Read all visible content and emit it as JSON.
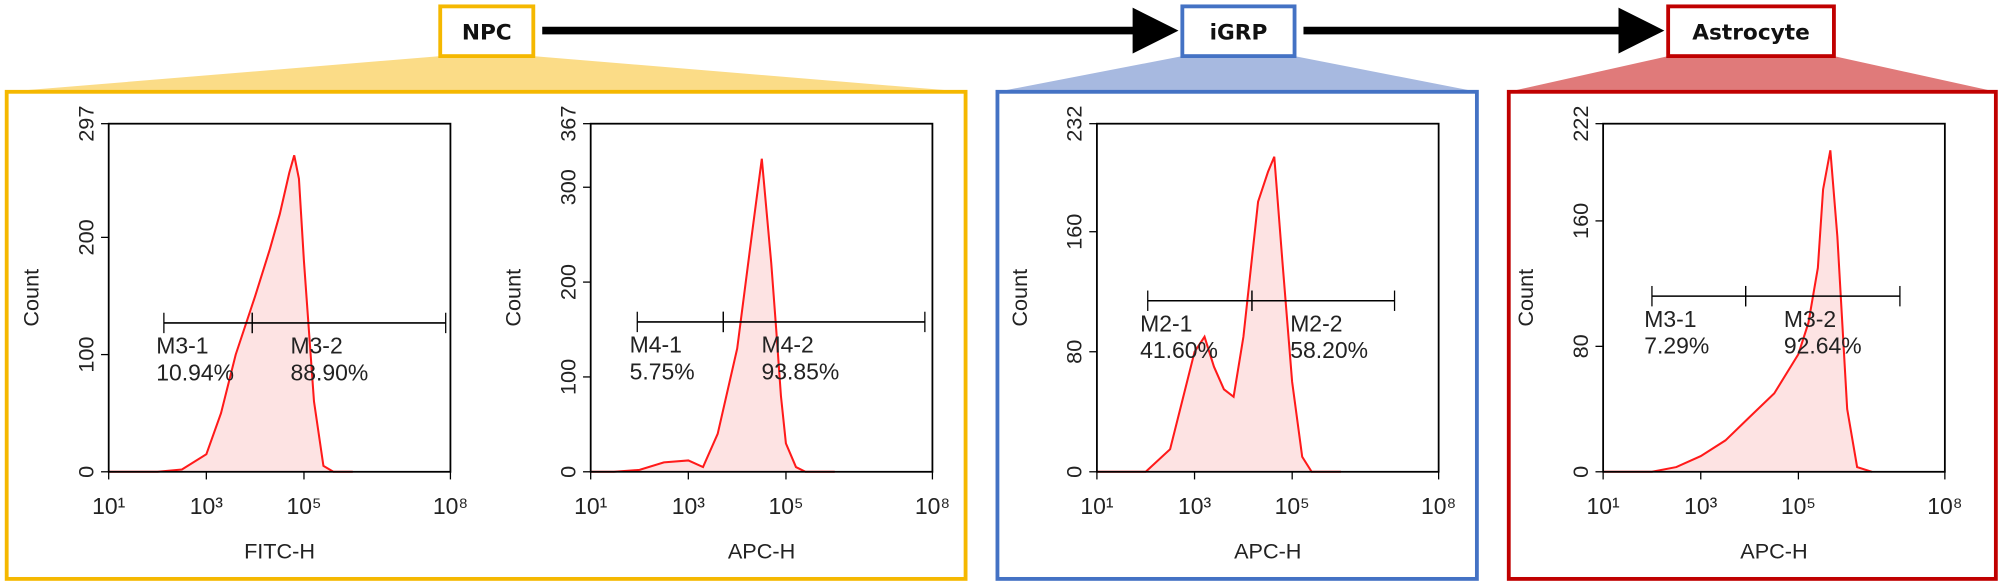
{
  "stages": [
    "NPC",
    "iGRP",
    "Astrocyte"
  ],
  "chart_data": [
    {
      "type": "area",
      "xscale": "log",
      "xlabel": "FITC-H",
      "ylabel": "Count",
      "color": "#ff1a1a",
      "fill": "#fde3e3",
      "xlim": [
        10,
        100000000
      ],
      "xticks": [
        {
          "value": 10,
          "label": "10¹"
        },
        {
          "value": 1000,
          "label": "10³"
        },
        {
          "value": 100000,
          "label": "10⁵"
        },
        {
          "value": 100000000,
          "label": "10⁸"
        }
      ],
      "ylim": [
        0,
        297
      ],
      "yticks": [
        0,
        100,
        200,
        297
      ],
      "x": [
        10,
        30,
        100,
        316,
        1000,
        2000,
        4000,
        10000,
        20000,
        32000,
        50000,
        63000,
        79000,
        100000,
        160000,
        250000,
        400000,
        1000000
      ],
      "values": [
        0,
        0,
        0,
        2,
        15,
        50,
        100,
        150,
        190,
        220,
        255,
        270,
        250,
        180,
        60,
        5,
        0,
        0
      ],
      "gates": [
        {
          "name": "M3-1",
          "label": "10.94%",
          "range": [
            135,
            8700
          ],
          "level": 127
        },
        {
          "name": "M3-2",
          "label": "88.90%",
          "range": [
            8700,
            80000000
          ],
          "level": 127
        }
      ]
    },
    {
      "type": "area",
      "xscale": "log",
      "xlabel": "APC-H",
      "ylabel": "Count",
      "color": "#ff1a1a",
      "fill": "#fde3e3",
      "xlim": [
        10,
        100000000
      ],
      "xticks": [
        {
          "value": 10,
          "label": "10¹"
        },
        {
          "value": 1000,
          "label": "10³"
        },
        {
          "value": 100000,
          "label": "10⁵"
        },
        {
          "value": 100000000,
          "label": "10⁸"
        }
      ],
      "ylim": [
        0,
        367
      ],
      "yticks": [
        0,
        100,
        200,
        300,
        367
      ],
      "x": [
        10,
        30,
        100,
        316,
        1000,
        2000,
        4000,
        10000,
        20000,
        32000,
        50000,
        63000,
        79000,
        100000,
        160000,
        250000,
        400000,
        1000000
      ],
      "values": [
        0,
        0,
        2,
        10,
        12,
        5,
        40,
        130,
        250,
        330,
        220,
        150,
        80,
        30,
        5,
        0,
        0,
        0
      ],
      "gates": [
        {
          "name": "M4-1",
          "label": "5.75%",
          "range": [
            90,
            5200
          ],
          "level": 158
        },
        {
          "name": "M4-2",
          "label": "93.85%",
          "range": [
            5200,
            70000000
          ],
          "level": 158
        }
      ]
    },
    {
      "type": "area",
      "xscale": "log",
      "xlabel": "APC-H",
      "ylabel": "Count",
      "color": "#ff1a1a",
      "fill": "#fde3e3",
      "xlim": [
        10,
        100000000
      ],
      "xticks": [
        {
          "value": 10,
          "label": "10¹"
        },
        {
          "value": 1000,
          "label": "10³"
        },
        {
          "value": 100000,
          "label": "10⁵"
        },
        {
          "value": 100000000,
          "label": "10⁸"
        }
      ],
      "ylim": [
        0,
        232
      ],
      "yticks": [
        0,
        80,
        160,
        232
      ],
      "x": [
        10,
        100,
        316,
        1000,
        1600,
        2500,
        4000,
        6300,
        10000,
        20000,
        32000,
        43000,
        63000,
        100000,
        160000,
        250000,
        1000000
      ],
      "values": [
        0,
        0,
        15,
        80,
        90,
        70,
        55,
        50,
        90,
        180,
        200,
        210,
        140,
        60,
        10,
        0,
        0
      ],
      "gates": [
        {
          "name": "M2-1",
          "label": "41.60%",
          "range": [
            110,
            15000
          ],
          "level": 114
        },
        {
          "name": "M2-2",
          "label": "58.20%",
          "range": [
            15000,
            12500000
          ],
          "level": 114
        }
      ]
    },
    {
      "type": "area",
      "xscale": "log",
      "xlabel": "APC-H",
      "ylabel": "Count",
      "color": "#ff1a1a",
      "fill": "#fde3e3",
      "xlim": [
        10,
        100000000
      ],
      "xticks": [
        {
          "value": 10,
          "label": "10¹"
        },
        {
          "value": 1000,
          "label": "10³"
        },
        {
          "value": 100000,
          "label": "10⁵"
        },
        {
          "value": 100000000,
          "label": "10⁸"
        }
      ],
      "ylim": [
        0,
        222
      ],
      "yticks": [
        0,
        80,
        160,
        222
      ],
      "x": [
        10,
        100,
        316,
        1000,
        3200,
        10000,
        32000,
        100000,
        160000,
        250000,
        320000,
        450000,
        630000,
        1000000,
        1600000,
        3200000
      ],
      "values": [
        0,
        0,
        3,
        10,
        20,
        35,
        50,
        75,
        95,
        130,
        180,
        205,
        150,
        40,
        3,
        0
      ],
      "gates": [
        {
          "name": "M3-1",
          "label": "7.29%",
          "range": [
            100,
            8300
          ],
          "level": 112
        },
        {
          "name": "M3-2",
          "label": "92.64%",
          "range": [
            8300,
            12000000
          ],
          "level": 112
        }
      ]
    }
  ]
}
